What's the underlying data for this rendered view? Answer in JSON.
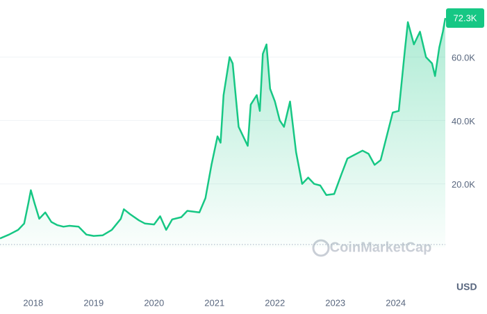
{
  "chart_data": {
    "type": "area",
    "watermark": "CoinMarketCap",
    "currency_label": "USD",
    "color": "#16c784",
    "grid": true,
    "xlim": [
      2017.45,
      2024.82
    ],
    "xticks": [
      2018,
      2019,
      2020,
      2021,
      2022,
      2023,
      2024
    ],
    "ylim": [
      0,
      78000
    ],
    "yticks": [
      {
        "value": 20000,
        "label": "20.0K"
      },
      {
        "value": 40000,
        "label": "40.0K"
      },
      {
        "value": 60000,
        "label": "60.0K"
      }
    ],
    "x": [
      2017.45,
      2017.6,
      2017.75,
      2017.85,
      2017.92,
      2017.96,
      2018.02,
      2018.1,
      2018.2,
      2018.3,
      2018.4,
      2018.5,
      2018.6,
      2018.75,
      2018.88,
      2019.0,
      2019.15,
      2019.3,
      2019.45,
      2019.5,
      2019.6,
      2019.75,
      2019.85,
      2020.0,
      2020.1,
      2020.2,
      2020.3,
      2020.45,
      2020.55,
      2020.75,
      2020.85,
      2020.95,
      2021.05,
      2021.1,
      2021.15,
      2021.25,
      2021.3,
      2021.4,
      2021.5,
      2021.55,
      2021.6,
      2021.7,
      2021.75,
      2021.8,
      2021.86,
      2021.92,
      2022.0,
      2022.08,
      2022.15,
      2022.25,
      2022.35,
      2022.45,
      2022.55,
      2022.65,
      2022.75,
      2022.85,
      2022.98,
      2023.1,
      2023.2,
      2023.3,
      2023.45,
      2023.55,
      2023.65,
      2023.75,
      2023.85,
      2023.95,
      2024.05,
      2024.15,
      2024.2,
      2024.3,
      2024.4,
      2024.5,
      2024.6,
      2024.65,
      2024.72,
      2024.78,
      2024.82
    ],
    "values": [
      2800,
      4000,
      5500,
      7500,
      14000,
      18000,
      14000,
      9000,
      11000,
      8000,
      7000,
      6500,
      6800,
      6500,
      4000,
      3600,
      3800,
      5500,
      9000,
      12000,
      10500,
      8500,
      7500,
      7200,
      9800,
      5500,
      8800,
      9500,
      11500,
      11000,
      15500,
      26000,
      35000,
      33000,
      48000,
      60000,
      58000,
      38000,
      34000,
      32000,
      45000,
      48000,
      43000,
      61000,
      64000,
      50000,
      46000,
      40000,
      38000,
      46000,
      30000,
      20000,
      22000,
      20000,
      19500,
      16500,
      16800,
      23000,
      28000,
      29000,
      30500,
      29500,
      26000,
      27500,
      35000,
      42500,
      43000,
      62000,
      71000,
      64000,
      68000,
      60000,
      58000,
      54000,
      63000,
      68000,
      72300
    ],
    "value_labels": [
      null,
      null,
      null,
      null,
      null,
      null,
      null,
      null,
      null,
      null,
      null,
      null,
      null,
      null,
      null,
      null,
      null,
      null,
      null,
      null,
      null,
      null,
      null,
      null,
      null,
      null,
      null,
      null,
      null,
      null,
      null,
      null,
      null,
      null,
      null,
      null,
      null,
      null,
      null,
      null,
      null,
      null,
      null,
      null,
      null,
      null,
      null,
      null,
      null,
      null,
      null,
      null,
      null,
      null,
      null,
      null,
      null,
      null,
      null,
      null,
      null,
      null,
      null,
      null,
      null,
      null,
      null,
      null,
      null,
      null,
      null,
      null,
      null,
      null,
      null,
      null,
      "72.3K"
    ]
  }
}
